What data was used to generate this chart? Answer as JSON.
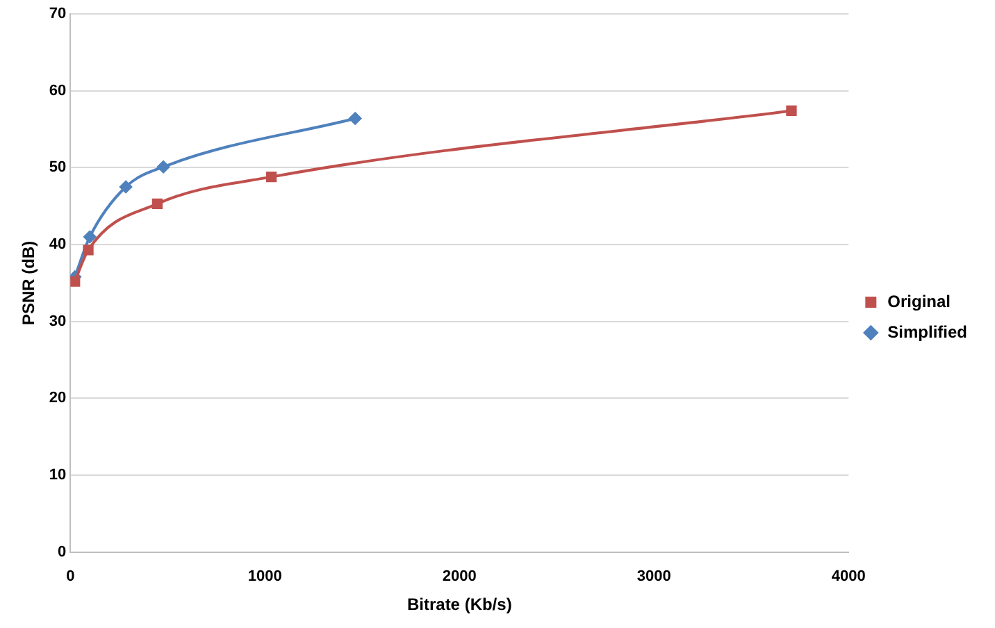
{
  "chart_data": {
    "type": "line",
    "xlabel": "Bitrate (Kb/s)",
    "ylabel": "PSNR (dB)",
    "xlim": [
      0,
      4000
    ],
    "xticks": [
      0,
      1000,
      2000,
      3000,
      4000
    ],
    "ylim": [
      0,
      70
    ],
    "yticks": [
      0,
      10,
      20,
      30,
      40,
      50,
      60,
      70
    ],
    "grid": "y",
    "legend": "right",
    "series": [
      {
        "name": "Original",
        "color": "#c0504d",
        "marker": "square",
        "x": [
          23,
          92,
          447,
          1033,
          3706
        ],
        "values": [
          35.2,
          39.3,
          45.3,
          48.8,
          57.4
        ]
      },
      {
        "name": "Simplified",
        "color": "#4f81bd",
        "marker": "diamond",
        "x": [
          23,
          100,
          285,
          478,
          1464
        ],
        "values": [
          35.8,
          41.0,
          47.5,
          50.1,
          56.4
        ]
      }
    ]
  }
}
